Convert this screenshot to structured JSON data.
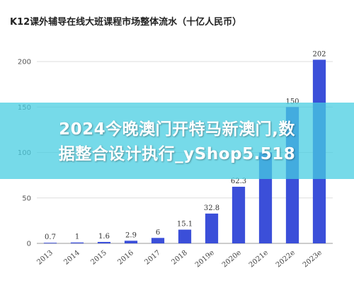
{
  "chart_data": {
    "type": "bar",
    "title": "K12课外辅导在线大班课程市场整体流水（十亿人民币）",
    "categories": [
      "2013",
      "2014",
      "2015",
      "2016",
      "2017",
      "2018",
      "2019e",
      "2020e",
      "2021e",
      "2022e",
      "2023e"
    ],
    "values": [
      0.7,
      1,
      1.6,
      2.9,
      6,
      15.1,
      32.8,
      62.3,
      100,
      150,
      202
    ],
    "value_labels": [
      "0.7",
      "1",
      "1.6",
      "2.9",
      "6",
      "15.1",
      "32.8",
      "62.3",
      "",
      "150",
      "202"
    ],
    "ylim": [
      0,
      200
    ],
    "yticks": [
      "0",
      "50",
      "100",
      "150",
      "200"
    ],
    "grid": true,
    "bar_color": "#3b4fd9"
  },
  "overlay": {
    "lines": [
      "2024今晚澳门开特马新澳门,数",
      "据整合设计执行_yShop5.518"
    ]
  }
}
